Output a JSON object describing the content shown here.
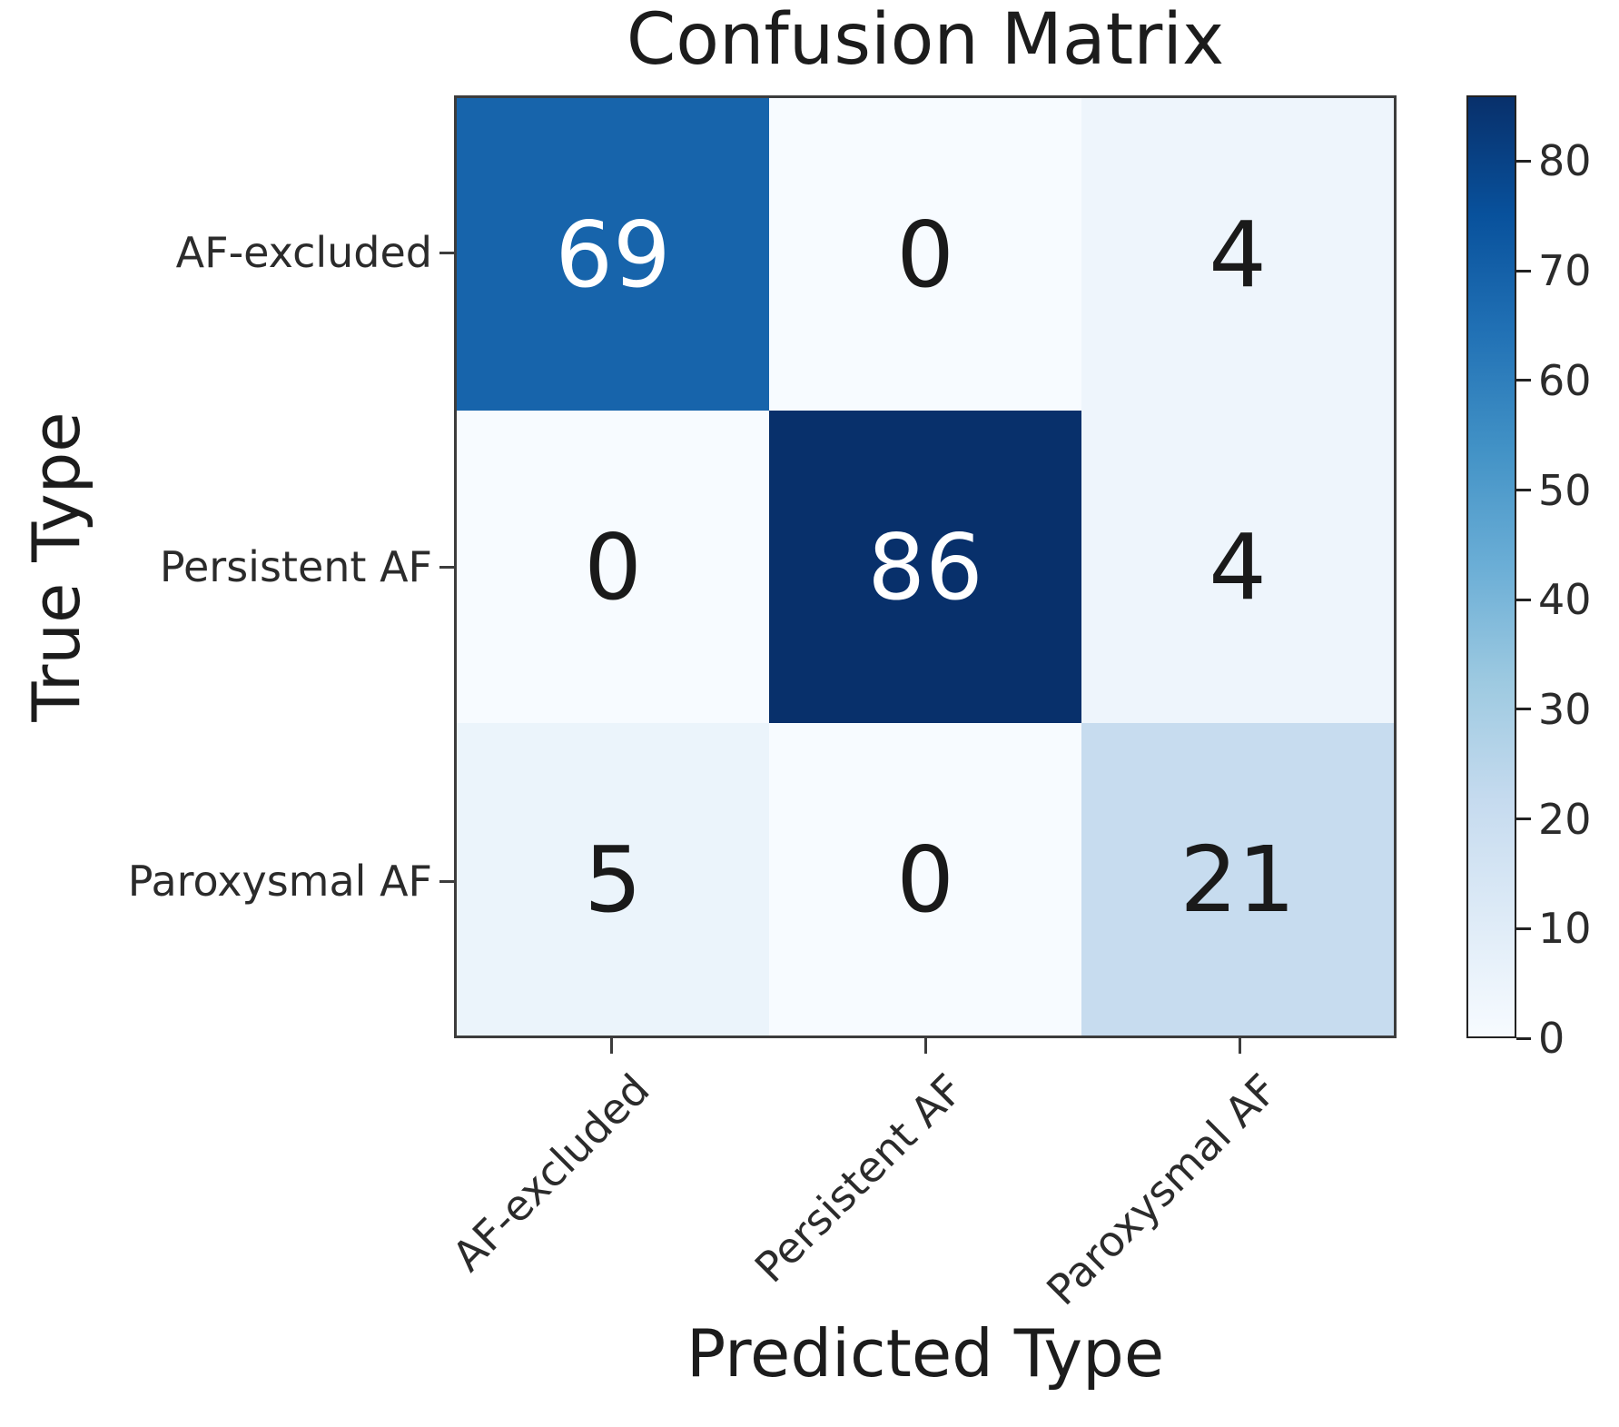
{
  "figure": {
    "title": "Confusion Matrix",
    "xlabel": "Predicted Type",
    "ylabel": "True Type"
  },
  "chart_data": {
    "type": "heatmap",
    "title": "Confusion Matrix",
    "xlabel": "Predicted Type",
    "ylabel": "True Type",
    "x_categories": [
      "AF-excluded",
      "Persistent AF",
      "Paroxysmal AF"
    ],
    "y_categories": [
      "AF-excluded",
      "Persistent AF",
      "Paroxysmal AF"
    ],
    "matrix": [
      [
        69,
        0,
        4
      ],
      [
        0,
        86,
        4
      ],
      [
        5,
        0,
        21
      ]
    ],
    "vmin": 0,
    "vmax": 86,
    "colormap": "Blues",
    "colormap_stops": [
      [
        0.0,
        "#f7fbff"
      ],
      [
        0.125,
        "#deebf7"
      ],
      [
        0.25,
        "#c6dbef"
      ],
      [
        0.375,
        "#9ecae1"
      ],
      [
        0.5,
        "#6baed6"
      ],
      [
        0.625,
        "#4292c6"
      ],
      [
        0.75,
        "#2171b5"
      ],
      [
        0.875,
        "#08519c"
      ],
      [
        1.0,
        "#08306b"
      ]
    ],
    "cell_text_colors": {
      "light_cells": "#1a1a1a",
      "dark_cells": "#ffffff"
    },
    "colorbar_ticks": [
      0,
      10,
      20,
      30,
      40,
      50,
      60,
      70,
      80
    ],
    "colorbar_position": "right",
    "grid": false,
    "x_tick_rotation_deg": 45
  }
}
